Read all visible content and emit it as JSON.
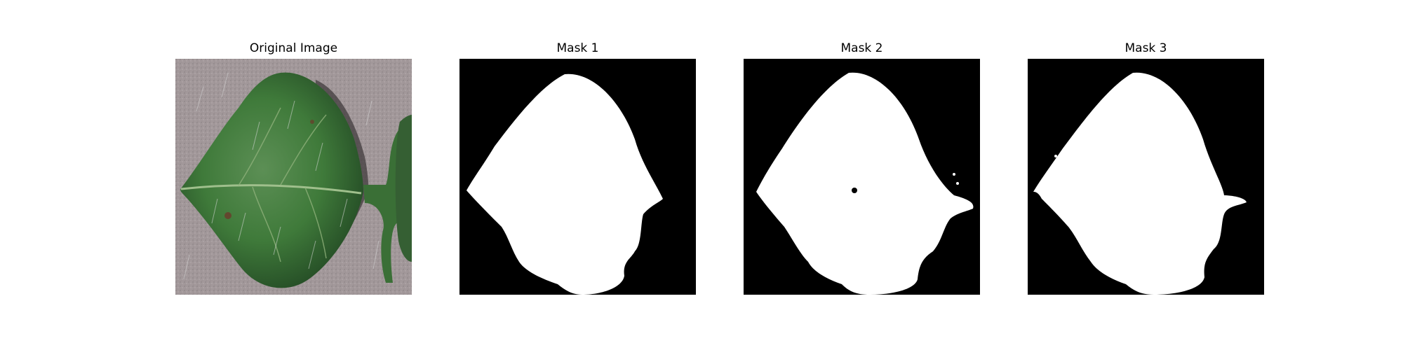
{
  "figure": {
    "panels": [
      {
        "title": "Original Image",
        "kind": "photo"
      },
      {
        "title": "Mask 1",
        "kind": "mask"
      },
      {
        "title": "Mask 2",
        "kind": "mask"
      },
      {
        "title": "Mask 3",
        "kind": "mask"
      }
    ]
  },
  "colors": {
    "mask_background": "#000000",
    "mask_foreground": "#ffffff",
    "photo_background": "#a2989a",
    "leaf_dark": "#2b5a2c",
    "leaf_mid": "#3f7a3a",
    "leaf_vein": "#9fbf8c"
  }
}
